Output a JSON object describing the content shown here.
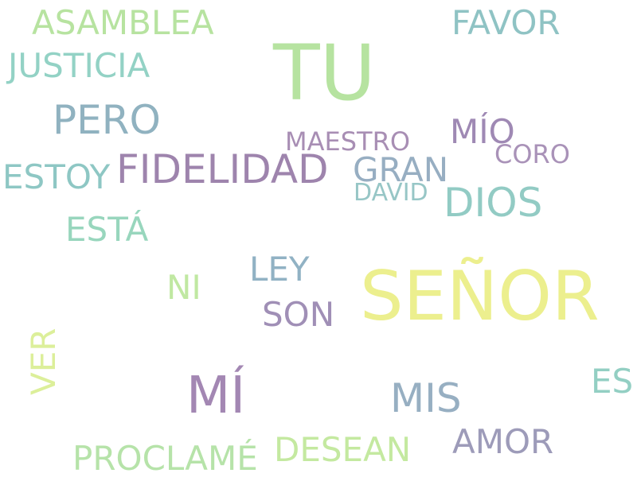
{
  "words": {
    "tu": {
      "text": "TU",
      "color": "#b6e3a0"
    },
    "senor": {
      "text": "SEÑOR",
      "color": "#ecef8e"
    },
    "fidelidad": {
      "text": "FIDELIDAD",
      "color": "#9e84ad"
    },
    "mi": {
      "text": "MÍ",
      "color": "#a387b3"
    },
    "pero": {
      "text": "PERO",
      "color": "#90b2c0"
    },
    "dios": {
      "text": "DIOS",
      "color": "#92cbc4"
    },
    "mis": {
      "text": "MIS",
      "color": "#97afc2"
    },
    "asamblea": {
      "text": "ASAMBLEA",
      "color": "#b7e3a0"
    },
    "justicia": {
      "text": "JUSTICIA",
      "color": "#93d2c5"
    },
    "favor": {
      "text": "FAVOR",
      "color": "#8fc3c4"
    },
    "estoy": {
      "text": "ESTOY",
      "color": "#8ec7c4"
    },
    "gran": {
      "text": "GRAN",
      "color": "#97aec2"
    },
    "esta": {
      "text": "ESTÁ",
      "color": "#98d6bd"
    },
    "ley": {
      "text": "LEY",
      "color": "#91b2c4"
    },
    "son": {
      "text": "SON",
      "color": "#a08fb6"
    },
    "amor": {
      "text": "AMOR",
      "color": "#9d9bb9"
    },
    "desean": {
      "text": "DESEAN",
      "color": "#c4e9a0"
    },
    "proclame": {
      "text": "PROCLAMÉ",
      "color": "#b6e3a9"
    },
    "es": {
      "text": "ES",
      "color": "#93cfc3"
    },
    "mio": {
      "text": "MÍO",
      "color": "#9f89b4"
    },
    "ni": {
      "text": "NI",
      "color": "#c0e8a2"
    },
    "maestro": {
      "text": "MAESTRO",
      "color": "#a88eb4"
    },
    "coro": {
      "text": "CORO",
      "color": "#a992b8"
    },
    "david": {
      "text": "DAVID",
      "color": "#97c6c6"
    },
    "ver": {
      "text": "VER",
      "color": "#dcef9a"
    }
  }
}
